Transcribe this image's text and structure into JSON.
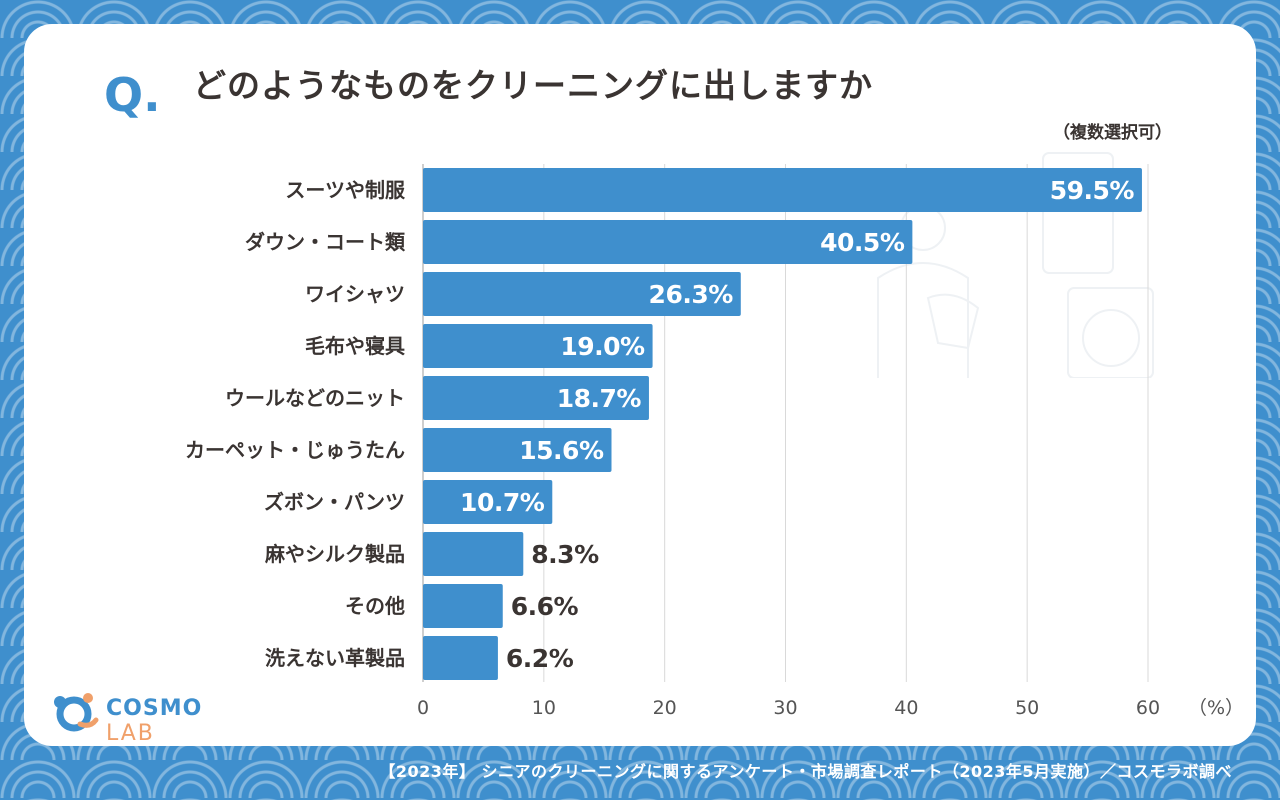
{
  "question_mark": "Q.",
  "title": "どのようなものをクリーニングに出しますか",
  "subtitle": "（複数選択可）",
  "logo": {
    "name": "COSMO",
    "suffix": "LAB"
  },
  "footer": "【2023年】 シニアのクリーニングに関するアンケート・市場調査レポート（2023年5月実施）／コスモラボ調べ",
  "colors": {
    "bar": "#3f8fcd",
    "background": "#3f8fcd",
    "text": "#3a3432",
    "grid": "#d9d9d9"
  },
  "chart_data": {
    "type": "bar",
    "orientation": "horizontal",
    "title": "どのようなものをクリーニングに出しますか",
    "categories": [
      "スーツや制服",
      "ダウン・コート類",
      "ワイシャツ",
      "毛布や寝具",
      "ウールなどのニット",
      "カーペット・じゅうたん",
      "ズボン・パンツ",
      "麻やシルク製品",
      "その他",
      "洗えない革製品"
    ],
    "values": [
      59.5,
      40.5,
      26.3,
      19.0,
      18.7,
      15.6,
      10.7,
      8.3,
      6.6,
      6.2
    ],
    "value_labels": [
      "59.5%",
      "40.5%",
      "26.3%",
      "19.0%",
      "18.7%",
      "15.6%",
      "10.7%",
      "8.3%",
      "6.6%",
      "6.2%"
    ],
    "xlim": [
      0,
      60
    ],
    "xticks": [
      "0",
      "10",
      "20",
      "30",
      "40",
      "50",
      "60"
    ],
    "xunit": "（%）",
    "grid": true
  }
}
